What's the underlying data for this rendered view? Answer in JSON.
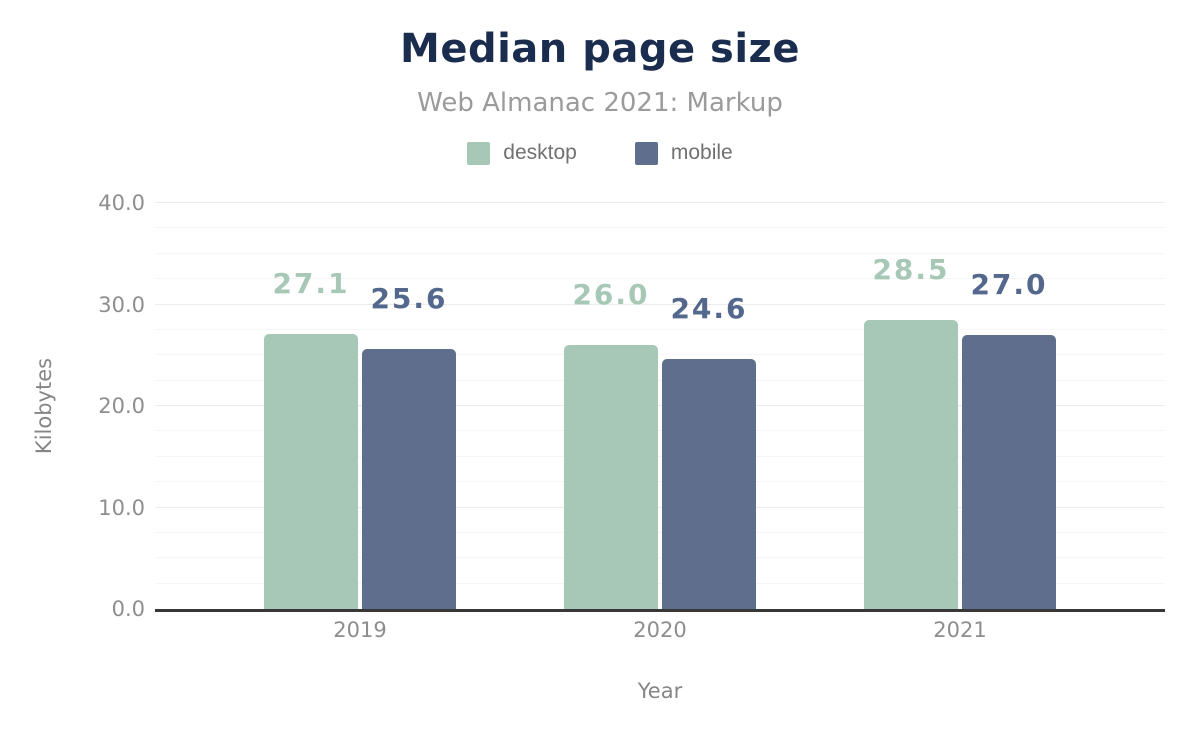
{
  "header": {
    "title": "Median page size",
    "subtitle": "Web Almanac 2021: Markup"
  },
  "colors": {
    "title_navy": "#1b2d4e",
    "subtitle_gray": "#9b9b9b",
    "axis_text_gray": "#8e8e8e",
    "axis_line": "#383838",
    "gridline_major": "#ececec",
    "gridline_minor": "#f6f6f6",
    "desktop_series": "#a7c8b7",
    "mobile_series": "#5f6e8c"
  },
  "chart_data": {
    "type": "bar",
    "title": "Median page size",
    "subtitle": "Web Almanac 2021: Markup",
    "categories": [
      "2019",
      "2020",
      "2021"
    ],
    "series": [
      {
        "name": "desktop",
        "color": "#a7c8b7",
        "label_color": "#a7c8b7",
        "values": [
          27.1,
          26.0,
          28.5
        ]
      },
      {
        "name": "mobile",
        "color": "#5f6e8c",
        "label_color": "#54678c",
        "values": [
          25.6,
          24.6,
          27.0
        ]
      }
    ],
    "xlabel": "Year",
    "ylabel": "Kilobytes",
    "ylim": [
      0,
      40
    ],
    "y_major_step": 10,
    "y_minor_step": 2.5,
    "y_tick_labels": [
      "0.0",
      "10.0",
      "20.0",
      "30.0",
      "40.0"
    ],
    "value_label_format": "one_decimal",
    "legend_position": "top",
    "grid": true
  }
}
